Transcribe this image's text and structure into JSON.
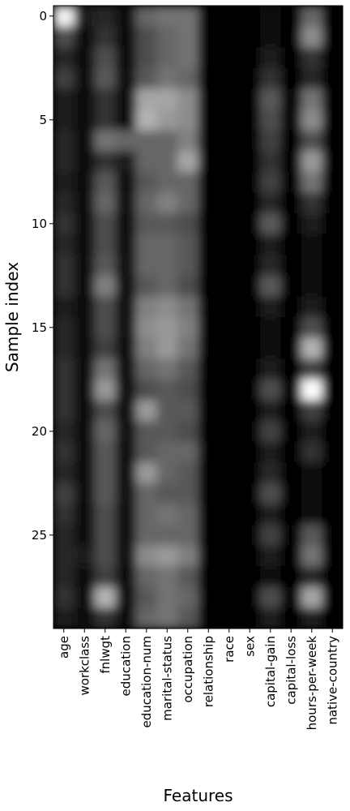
{
  "chart_data": {
    "type": "heatmap",
    "title": "",
    "xlabel": "Features",
    "ylabel": "Sample index",
    "x_categories": [
      "age",
      "workclass",
      "fnlwgt",
      "education",
      "education-num",
      "marital-status",
      "occupation",
      "relationship",
      "race",
      "sex",
      "capital-gain",
      "capital-loss",
      "hours-per-week",
      "native-country"
    ],
    "y_range": [
      0,
      29
    ],
    "y_ticks": [
      "0",
      "5",
      "10",
      "15",
      "20",
      "25"
    ],
    "colormap": "grayscale",
    "interpolation": "smooth",
    "grid": false,
    "colors": {
      "low": "#000000",
      "high": "#ffffff"
    },
    "values": [
      [
        0.95,
        0.1,
        0.15,
        0.05,
        0.4,
        0.45,
        0.45,
        0.0,
        0.0,
        0.0,
        0.05,
        0.0,
        0.4,
        0.0
      ],
      [
        0.3,
        0.05,
        0.2,
        0.05,
        0.3,
        0.4,
        0.45,
        0.0,
        0.0,
        0.0,
        0.05,
        0.0,
        0.55,
        0.0
      ],
      [
        0.15,
        0.05,
        0.3,
        0.05,
        0.3,
        0.4,
        0.45,
        0.0,
        0.0,
        0.0,
        0.1,
        0.0,
        0.2,
        0.0
      ],
      [
        0.25,
        0.05,
        0.35,
        0.05,
        0.35,
        0.45,
        0.4,
        0.0,
        0.0,
        0.0,
        0.2,
        0.0,
        0.15,
        0.0
      ],
      [
        0.1,
        0.05,
        0.2,
        0.05,
        0.65,
        0.65,
        0.55,
        0.0,
        0.0,
        0.0,
        0.35,
        0.0,
        0.45,
        0.0
      ],
      [
        0.1,
        0.05,
        0.2,
        0.05,
        0.7,
        0.6,
        0.55,
        0.0,
        0.0,
        0.0,
        0.3,
        0.0,
        0.55,
        0.0
      ],
      [
        0.15,
        0.05,
        0.45,
        0.4,
        0.4,
        0.4,
        0.5,
        0.0,
        0.0,
        0.0,
        0.25,
        0.0,
        0.3,
        0.0
      ],
      [
        0.15,
        0.05,
        0.2,
        0.1,
        0.4,
        0.4,
        0.65,
        0.0,
        0.0,
        0.0,
        0.2,
        0.0,
        0.6,
        0.0
      ],
      [
        0.1,
        0.05,
        0.35,
        0.05,
        0.35,
        0.4,
        0.4,
        0.0,
        0.0,
        0.0,
        0.25,
        0.0,
        0.45,
        0.0
      ],
      [
        0.15,
        0.05,
        0.4,
        0.05,
        0.4,
        0.5,
        0.4,
        0.0,
        0.0,
        0.0,
        0.15,
        0.0,
        0.2,
        0.0
      ],
      [
        0.2,
        0.05,
        0.3,
        0.05,
        0.35,
        0.35,
        0.3,
        0.0,
        0.0,
        0.0,
        0.35,
        0.0,
        0.1,
        0.0
      ],
      [
        0.15,
        0.05,
        0.3,
        0.05,
        0.4,
        0.4,
        0.35,
        0.0,
        0.0,
        0.0,
        0.1,
        0.0,
        0.05,
        0.0
      ],
      [
        0.2,
        0.05,
        0.35,
        0.05,
        0.4,
        0.4,
        0.35,
        0.0,
        0.0,
        0.0,
        0.15,
        0.0,
        0.05,
        0.0
      ],
      [
        0.2,
        0.05,
        0.5,
        0.05,
        0.35,
        0.4,
        0.3,
        0.0,
        0.0,
        0.0,
        0.35,
        0.0,
        0.05,
        0.0
      ],
      [
        0.1,
        0.05,
        0.3,
        0.05,
        0.5,
        0.55,
        0.45,
        0.0,
        0.0,
        0.0,
        0.1,
        0.0,
        0.1,
        0.0
      ],
      [
        0.15,
        0.05,
        0.3,
        0.05,
        0.55,
        0.6,
        0.5,
        0.0,
        0.0,
        0.0,
        0.05,
        0.0,
        0.3,
        0.0
      ],
      [
        0.15,
        0.05,
        0.25,
        0.05,
        0.5,
        0.6,
        0.45,
        0.0,
        0.0,
        0.0,
        0.05,
        0.0,
        0.7,
        0.0
      ],
      [
        0.2,
        0.05,
        0.45,
        0.05,
        0.4,
        0.45,
        0.35,
        0.0,
        0.0,
        0.0,
        0.1,
        0.0,
        0.25,
        0.0
      ],
      [
        0.2,
        0.05,
        0.6,
        0.05,
        0.3,
        0.35,
        0.3,
        0.0,
        0.0,
        0.0,
        0.3,
        0.0,
        1.0,
        0.0
      ],
      [
        0.2,
        0.05,
        0.3,
        0.05,
        0.6,
        0.35,
        0.35,
        0.0,
        0.0,
        0.0,
        0.1,
        0.0,
        0.25,
        0.0
      ],
      [
        0.15,
        0.05,
        0.4,
        0.05,
        0.35,
        0.35,
        0.3,
        0.0,
        0.0,
        0.0,
        0.25,
        0.0,
        0.1,
        0.0
      ],
      [
        0.2,
        0.05,
        0.35,
        0.05,
        0.35,
        0.4,
        0.4,
        0.0,
        0.0,
        0.0,
        0.1,
        0.0,
        0.2,
        0.0
      ],
      [
        0.15,
        0.05,
        0.35,
        0.05,
        0.6,
        0.4,
        0.35,
        0.0,
        0.0,
        0.0,
        0.15,
        0.0,
        0.05,
        0.0
      ],
      [
        0.25,
        0.05,
        0.35,
        0.05,
        0.4,
        0.35,
        0.35,
        0.0,
        0.0,
        0.0,
        0.3,
        0.0,
        0.05,
        0.0
      ],
      [
        0.2,
        0.05,
        0.3,
        0.05,
        0.4,
        0.45,
        0.4,
        0.0,
        0.0,
        0.0,
        0.1,
        0.0,
        0.05,
        0.0
      ],
      [
        0.15,
        0.05,
        0.3,
        0.05,
        0.4,
        0.4,
        0.4,
        0.0,
        0.0,
        0.0,
        0.25,
        0.0,
        0.35,
        0.0
      ],
      [
        0.15,
        0.1,
        0.3,
        0.05,
        0.55,
        0.6,
        0.5,
        0.0,
        0.0,
        0.0,
        0.1,
        0.0,
        0.45,
        0.0
      ],
      [
        0.15,
        0.05,
        0.25,
        0.05,
        0.4,
        0.45,
        0.35,
        0.0,
        0.0,
        0.0,
        0.05,
        0.0,
        0.15,
        0.0
      ],
      [
        0.2,
        0.05,
        0.7,
        0.05,
        0.35,
        0.45,
        0.4,
        0.0,
        0.0,
        0.0,
        0.3,
        0.0,
        0.65,
        0.0
      ],
      [
        0.1,
        0.05,
        0.2,
        0.05,
        0.4,
        0.45,
        0.35,
        0.0,
        0.0,
        0.0,
        0.1,
        0.0,
        0.1,
        0.0
      ]
    ]
  }
}
